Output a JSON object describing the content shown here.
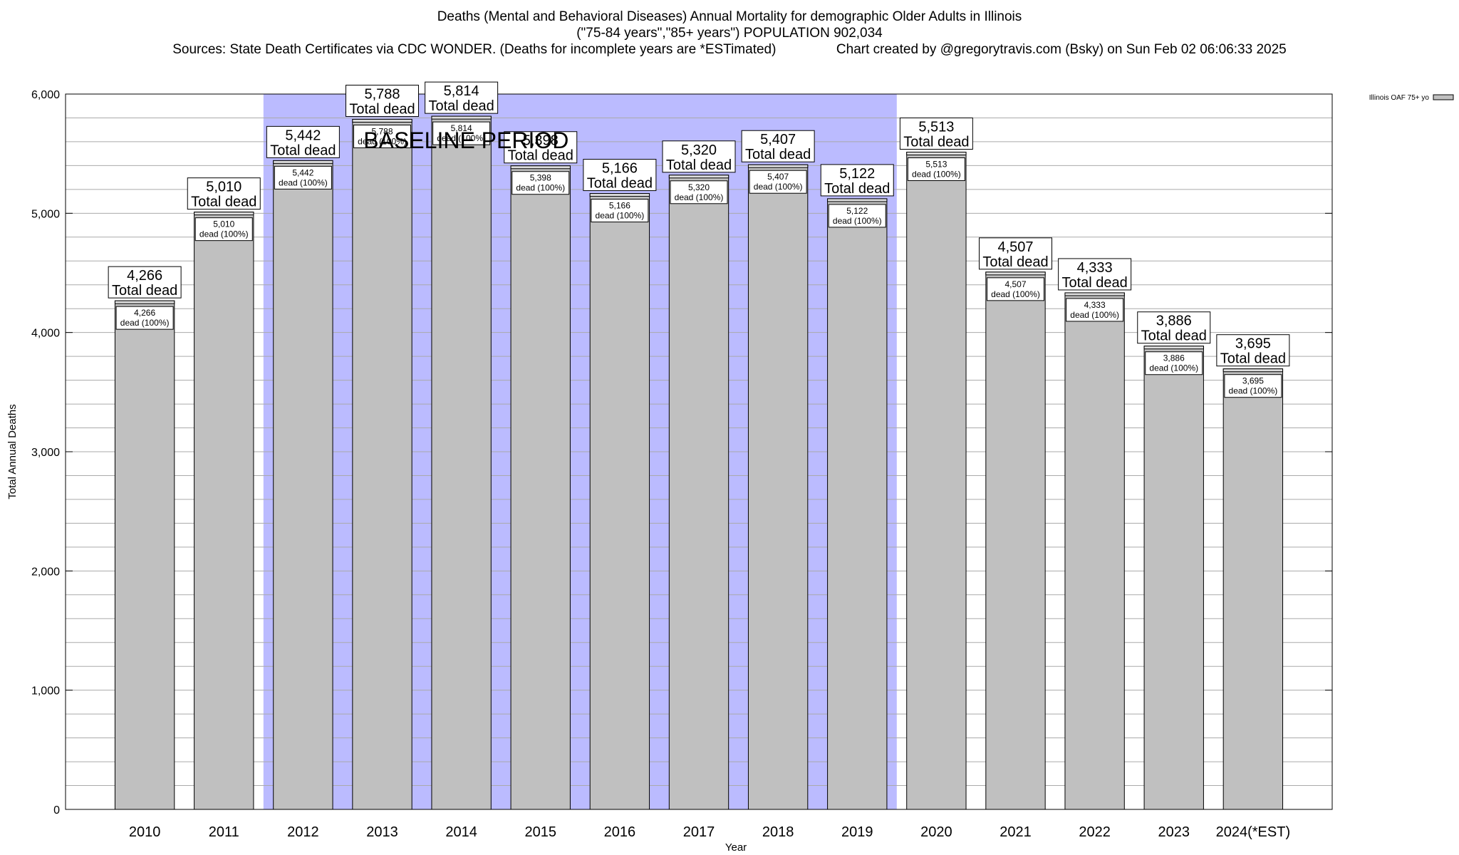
{
  "chart_data": {
    "type": "bar",
    "title": "Deaths (Mental and Behavioral Diseases) Annual Mortality for demographic Older Adults in Illinois",
    "subtitle": "(\"75-84 years\",\"85+ years\") POPULATION 902,034",
    "sources": "Sources: State Death Certificates via CDC WONDER. (Deaths for incomplete years are *ESTimated)",
    "credit": "Chart created by @gregorytravis.com (Bsky) on Sun Feb 02 06:06:33 2025",
    "xlabel": "Year",
    "ylabel": "Total Annual Deaths",
    "ylim": [
      0,
      6000
    ],
    "yticks": [
      0,
      1000,
      2000,
      3000,
      4000,
      5000,
      6000
    ],
    "ytick_labels": [
      "0",
      "1,000",
      "2,000",
      "3,000",
      "4,000",
      "5,000",
      "6,000"
    ],
    "categories": [
      "2010",
      "2011",
      "2012",
      "2013",
      "2014",
      "2015",
      "2016",
      "2017",
      "2018",
      "2019",
      "2020",
      "2021",
      "2022",
      "2023",
      "2024(*EST)"
    ],
    "series": [
      {
        "name": "Illinois OAF 75+ yo",
        "values": [
          4266,
          5010,
          5442,
          5788,
          5814,
          5398,
          5166,
          5320,
          5407,
          5122,
          5513,
          4507,
          4333,
          3886,
          3695
        ]
      }
    ],
    "total_labels": [
      "4,266",
      "5,010",
      "5,442",
      "5,788",
      "5,814",
      "5,398",
      "5,166",
      "5,320",
      "5,407",
      "5,122",
      "5,513",
      "4,507",
      "4,333",
      "3,886",
      "3,695"
    ],
    "total_suffix": "Total dead",
    "inner_suffix": "dead (100%)",
    "baseline": {
      "label": "BASELINE PERIOD",
      "start": "2012",
      "end": "2019",
      "color": "#bbbbff"
    },
    "bar_color": "#c0c0c0",
    "grid": true,
    "legend_position": "top-right"
  }
}
